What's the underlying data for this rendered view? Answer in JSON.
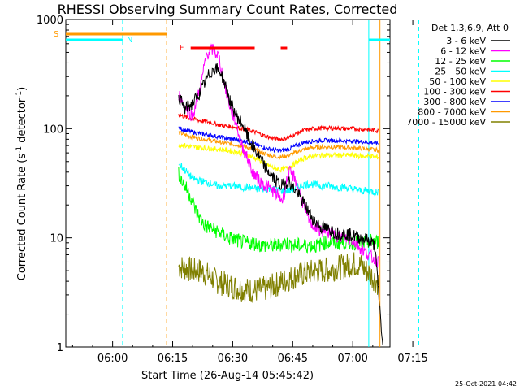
{
  "chart_data": {
    "type": "line",
    "title": "RHESSI Observing Summary Count Rates, Corrected",
    "xlabel": "Start Time (26-Aug-14 05:45:42)",
    "ylabel_main": "Corrected Count Rate (s",
    "ylabel_sup1": "-1",
    "ylabel_mid": " detector",
    "ylabel_sup2": "-1",
    "ylabel_end": ")",
    "yscale": "log",
    "ylim": [
      1,
      1000
    ],
    "y_ticks": [
      1,
      10,
      100,
      1000
    ],
    "y_tick_labels": [
      "1",
      "10",
      "100",
      "1000"
    ],
    "xlim_minutes": [
      -11.7,
      69.3
    ],
    "x_ticks_minutes": [
      0,
      15,
      30,
      45,
      60,
      75
    ],
    "x_tick_labels": [
      "06:00",
      "06:15",
      "06:30",
      "06:45",
      "07:00",
      "07:15"
    ],
    "legend_title": "Det 1,3,6,9, Att 0",
    "legend_position": "top-right",
    "series": [
      {
        "name": "3 - 6 keV",
        "color": "#000000",
        "points": [
          [
            16.5,
            200
          ],
          [
            18,
            150
          ],
          [
            20,
            170
          ],
          [
            22,
            220
          ],
          [
            24,
            310
          ],
          [
            25.5,
            360
          ],
          [
            27,
            330
          ],
          [
            28,
            260
          ],
          [
            29.5,
            170
          ],
          [
            31,
            130
          ],
          [
            32.5,
            110
          ],
          [
            34,
            80
          ],
          [
            36,
            60
          ],
          [
            38,
            45
          ],
          [
            40,
            36
          ],
          [
            42,
            30
          ],
          [
            44,
            33
          ],
          [
            46,
            26
          ],
          [
            48,
            20
          ],
          [
            50,
            15
          ],
          [
            52,
            12.5
          ],
          [
            54,
            12
          ],
          [
            56,
            11
          ],
          [
            58,
            11
          ],
          [
            60,
            10.5
          ],
          [
            62,
            10
          ],
          [
            64,
            9.5
          ],
          [
            65.5,
            8.5
          ],
          [
            66.5,
            3
          ],
          [
            67.5,
            1
          ]
        ]
      },
      {
        "name": "6 - 12 keV",
        "color": "#ff00ff",
        "points": [
          [
            16.5,
            210
          ],
          [
            18,
            160
          ],
          [
            20,
            130
          ],
          [
            22,
            250
          ],
          [
            23.5,
            480
          ],
          [
            25,
            530
          ],
          [
            26.5,
            460
          ],
          [
            28,
            250
          ],
          [
            29.5,
            150
          ],
          [
            31,
            110
          ],
          [
            32,
            75
          ],
          [
            33.5,
            55
          ],
          [
            35,
            40
          ],
          [
            37,
            32
          ],
          [
            39,
            29
          ],
          [
            41,
            25
          ],
          [
            42.5,
            22
          ],
          [
            44,
            40
          ],
          [
            45.5,
            36
          ],
          [
            47,
            24
          ],
          [
            48.5,
            16
          ],
          [
            50,
            13
          ],
          [
            52,
            11.5
          ],
          [
            54,
            11
          ],
          [
            56,
            10.5
          ],
          [
            58,
            10
          ],
          [
            60,
            9.5
          ],
          [
            62,
            8
          ],
          [
            64,
            7
          ],
          [
            65,
            6.5
          ],
          [
            66.5,
            6
          ]
        ]
      },
      {
        "name": "12 - 25 keV",
        "color": "#00ff00",
        "points": [
          [
            16.5,
            38
          ],
          [
            18,
            30
          ],
          [
            19.5,
            24
          ],
          [
            21,
            17
          ],
          [
            23,
            13
          ],
          [
            25,
            12
          ],
          [
            27,
            11
          ],
          [
            29,
            10
          ],
          [
            31,
            9.5
          ],
          [
            33,
            9
          ],
          [
            35,
            9
          ],
          [
            37,
            8.5
          ],
          [
            39,
            8.5
          ],
          [
            41,
            8.5
          ],
          [
            43,
            9
          ],
          [
            45,
            8.5
          ],
          [
            47,
            8.5
          ],
          [
            49,
            8.5
          ],
          [
            51,
            8.5
          ],
          [
            53,
            9
          ],
          [
            55,
            9
          ],
          [
            57,
            9
          ],
          [
            59,
            9
          ],
          [
            61,
            9
          ],
          [
            63,
            9
          ],
          [
            65,
            9.5
          ],
          [
            66.5,
            9
          ]
        ]
      },
      {
        "name": "25 - 50 keV",
        "color": "#00ffff",
        "points": [
          [
            16.5,
            48
          ],
          [
            18,
            42
          ],
          [
            20,
            35
          ],
          [
            22,
            33
          ],
          [
            24,
            32
          ],
          [
            26,
            30
          ],
          [
            28,
            30
          ],
          [
            30,
            30
          ],
          [
            32,
            29
          ],
          [
            34,
            29
          ],
          [
            36,
            28
          ],
          [
            38,
            28
          ],
          [
            40,
            28
          ],
          [
            42,
            27
          ],
          [
            44,
            27
          ],
          [
            46,
            29
          ],
          [
            48,
            31
          ],
          [
            50,
            31
          ],
          [
            52,
            30
          ],
          [
            54,
            30
          ],
          [
            56,
            29
          ],
          [
            58,
            29
          ],
          [
            60,
            28
          ],
          [
            62,
            27
          ],
          [
            64,
            27
          ],
          [
            66,
            26
          ],
          [
            66.5,
            27
          ]
        ]
      },
      {
        "name": "50 - 100 keV",
        "color": "#ffff00",
        "points": [
          [
            16.5,
            72
          ],
          [
            18,
            70
          ],
          [
            20,
            68
          ],
          [
            22,
            67
          ],
          [
            24,
            66
          ],
          [
            26,
            65
          ],
          [
            28,
            64
          ],
          [
            30,
            62
          ],
          [
            32,
            60
          ],
          [
            34,
            57
          ],
          [
            36,
            53
          ],
          [
            38,
            48
          ],
          [
            40,
            44
          ],
          [
            42,
            42
          ],
          [
            44,
            44
          ],
          [
            46,
            49
          ],
          [
            48,
            54
          ],
          [
            50,
            56
          ],
          [
            52,
            57
          ],
          [
            54,
            57
          ],
          [
            56,
            57
          ],
          [
            58,
            57
          ],
          [
            60,
            57
          ],
          [
            62,
            56
          ],
          [
            64,
            56
          ],
          [
            66,
            55
          ],
          [
            66.5,
            55
          ]
        ]
      },
      {
        "name": "100 - 300 keV",
        "color": "#ff0000",
        "points": [
          [
            16.5,
            135
          ],
          [
            18,
            128
          ],
          [
            20,
            123
          ],
          [
            22,
            118
          ],
          [
            24,
            115
          ],
          [
            26,
            110
          ],
          [
            28,
            106
          ],
          [
            30,
            104
          ],
          [
            32,
            101
          ],
          [
            34,
            97
          ],
          [
            36,
            92
          ],
          [
            38,
            86
          ],
          [
            40,
            82
          ],
          [
            42,
            80
          ],
          [
            44,
            83
          ],
          [
            46,
            90
          ],
          [
            48,
            97
          ],
          [
            50,
            100
          ],
          [
            52,
            101
          ],
          [
            54,
            101
          ],
          [
            56,
            101
          ],
          [
            58,
            100
          ],
          [
            60,
            100
          ],
          [
            62,
            99
          ],
          [
            64,
            98
          ],
          [
            66,
            96
          ],
          [
            66.5,
            95
          ]
        ]
      },
      {
        "name": "300 - 800 keV",
        "color": "#0000ff",
        "points": [
          [
            16.5,
            102
          ],
          [
            18,
            97
          ],
          [
            20,
            93
          ],
          [
            22,
            90
          ],
          [
            24,
            88
          ],
          [
            26,
            85
          ],
          [
            28,
            82
          ],
          [
            30,
            80
          ],
          [
            32,
            78
          ],
          [
            34,
            75
          ],
          [
            36,
            71
          ],
          [
            38,
            67
          ],
          [
            40,
            64
          ],
          [
            42,
            63
          ],
          [
            44,
            65
          ],
          [
            46,
            70
          ],
          [
            48,
            75
          ],
          [
            50,
            77
          ],
          [
            52,
            78
          ],
          [
            54,
            78
          ],
          [
            56,
            78
          ],
          [
            58,
            77
          ],
          [
            60,
            77
          ],
          [
            62,
            76
          ],
          [
            64,
            75
          ],
          [
            66,
            74
          ],
          [
            66.5,
            73
          ]
        ]
      },
      {
        "name": "800 - 7000 keV",
        "color": "#ff9900",
        "points": [
          [
            16.5,
            92
          ],
          [
            18,
            88
          ],
          [
            20,
            84
          ],
          [
            22,
            81
          ],
          [
            24,
            79
          ],
          [
            26,
            76
          ],
          [
            28,
            74
          ],
          [
            30,
            72
          ],
          [
            32,
            70
          ],
          [
            34,
            67
          ],
          [
            36,
            63
          ],
          [
            38,
            59
          ],
          [
            40,
            56
          ],
          [
            42,
            55
          ],
          [
            44,
            57
          ],
          [
            46,
            61
          ],
          [
            48,
            65
          ],
          [
            50,
            67
          ],
          [
            52,
            68
          ],
          [
            54,
            68
          ],
          [
            56,
            68
          ],
          [
            58,
            67
          ],
          [
            60,
            67
          ],
          [
            62,
            66
          ],
          [
            64,
            65
          ],
          [
            66,
            64
          ],
          [
            66.5,
            63
          ]
        ]
      },
      {
        "name": "7000 - 15000 keV",
        "color": "#808000",
        "points": [
          [
            16.5,
            5.5
          ],
          [
            18,
            5.3
          ],
          [
            20,
            5
          ],
          [
            22,
            5
          ],
          [
            24,
            4.5
          ],
          [
            26,
            4
          ],
          [
            28,
            3.8
          ],
          [
            30,
            3.6
          ],
          [
            32,
            3.4
          ],
          [
            34,
            3.3
          ],
          [
            36,
            3.3
          ],
          [
            38,
            3.4
          ],
          [
            40,
            3.6
          ],
          [
            42,
            3.9
          ],
          [
            44,
            4.2
          ],
          [
            46,
            4.5
          ],
          [
            48,
            4.7
          ],
          [
            50,
            4.9
          ],
          [
            52,
            5
          ],
          [
            54,
            5.1
          ],
          [
            56,
            5.3
          ],
          [
            58,
            5.5
          ],
          [
            60,
            5.8
          ],
          [
            62,
            5.6
          ],
          [
            64,
            4.8
          ],
          [
            66,
            4
          ],
          [
            66.5,
            3.8
          ]
        ]
      }
    ],
    "annotations": {
      "s_label": "S",
      "n_label": "N",
      "f_label": "F",
      "s_bar_minutes": [
        -11.7,
        13.5
      ],
      "n_bar_minutes": [
        [
          -11.7,
          2.5
        ],
        [
          64,
          69.3
        ]
      ],
      "f_bar_minutes": [
        [
          19.5,
          35.5
        ],
        [
          42,
          43.6
        ]
      ],
      "vlines_minutes": [
        {
          "x": 2.5,
          "color": "#00ffff",
          "style": "dashed"
        },
        {
          "x": 13.5,
          "color": "#ff9900",
          "style": "dashed"
        },
        {
          "x": 64,
          "color": "#00ffff",
          "style": "solid"
        },
        {
          "x": 66.8,
          "color": "#ff9900",
          "style": "solid"
        },
        {
          "x": 76.5,
          "color": "#00ffff",
          "style": "dashed"
        }
      ]
    },
    "timestamp": "25-Oct-2021 04:42"
  }
}
